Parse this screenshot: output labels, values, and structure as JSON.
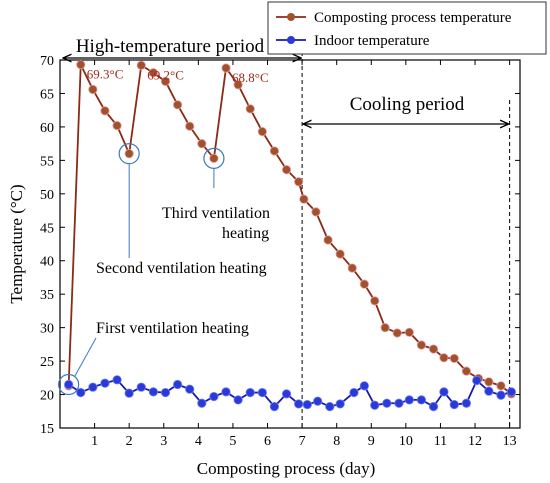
{
  "chart_data": {
    "type": "line",
    "xlabel": "Composting process (day)",
    "ylabel": "Temperature (°C)",
    "xlim": [
      0,
      13.3
    ],
    "ylim": [
      15,
      70
    ],
    "xticks": [
      1,
      2,
      3,
      4,
      5,
      6,
      7,
      8,
      9,
      10,
      11,
      12,
      13
    ],
    "yticks": [
      15,
      20,
      25,
      30,
      35,
      40,
      45,
      50,
      55,
      60,
      65,
      70
    ],
    "grid": false,
    "legend_position": "top-right",
    "series": [
      {
        "name": "Composting process temperature",
        "color": "#8b2a16",
        "marker_color": "#a0522d",
        "values": [
          [
            0.25,
            21.3
          ],
          [
            0.6,
            69.3
          ],
          [
            0.95,
            65.6
          ],
          [
            1.3,
            62.4
          ],
          [
            1.65,
            60.2
          ],
          [
            2.0,
            56.0
          ],
          [
            2.35,
            69.2
          ],
          [
            2.7,
            68.1
          ],
          [
            3.05,
            66.8
          ],
          [
            3.4,
            63.3
          ],
          [
            3.75,
            60.1
          ],
          [
            4.1,
            57.5
          ],
          [
            4.45,
            55.3
          ],
          [
            4.8,
            68.8
          ],
          [
            5.15,
            66.3
          ],
          [
            5.5,
            62.7
          ],
          [
            5.85,
            59.3
          ],
          [
            6.2,
            56.4
          ],
          [
            6.55,
            53.6
          ],
          [
            6.9,
            51.8
          ],
          [
            7.05,
            49.2
          ],
          [
            7.4,
            47.3
          ],
          [
            7.75,
            43.1
          ],
          [
            8.1,
            41.0
          ],
          [
            8.45,
            38.9
          ],
          [
            8.8,
            36.5
          ],
          [
            9.1,
            34.0
          ],
          [
            9.4,
            30.0
          ],
          [
            9.75,
            29.2
          ],
          [
            10.1,
            29.3
          ],
          [
            10.45,
            27.4
          ],
          [
            10.8,
            26.8
          ],
          [
            11.1,
            25.5
          ],
          [
            11.4,
            25.4
          ],
          [
            11.75,
            23.5
          ],
          [
            12.1,
            22.4
          ],
          [
            12.4,
            21.9
          ],
          [
            12.75,
            21.3
          ],
          [
            13.05,
            20.1
          ]
        ]
      },
      {
        "name": "Indoor temperature",
        "color": "#1a1aaa",
        "marker_color": "#2a3ad6",
        "values": [
          [
            0.25,
            21.5
          ],
          [
            0.6,
            20.3
          ],
          [
            0.95,
            21.1
          ],
          [
            1.3,
            21.7
          ],
          [
            1.65,
            22.2
          ],
          [
            2.0,
            20.2
          ],
          [
            2.35,
            21.1
          ],
          [
            2.7,
            20.4
          ],
          [
            3.05,
            20.3
          ],
          [
            3.4,
            21.5
          ],
          [
            3.75,
            20.8
          ],
          [
            4.1,
            18.7
          ],
          [
            4.45,
            19.7
          ],
          [
            4.8,
            20.4
          ],
          [
            5.15,
            19.2
          ],
          [
            5.5,
            20.3
          ],
          [
            5.85,
            20.3
          ],
          [
            6.2,
            18.2
          ],
          [
            6.55,
            20.1
          ],
          [
            6.9,
            18.6
          ],
          [
            7.15,
            18.5
          ],
          [
            7.45,
            19.0
          ],
          [
            7.8,
            18.2
          ],
          [
            8.1,
            18.6
          ],
          [
            8.5,
            20.3
          ],
          [
            8.8,
            21.3
          ],
          [
            9.1,
            18.4
          ],
          [
            9.45,
            18.7
          ],
          [
            9.8,
            18.7
          ],
          [
            10.1,
            19.2
          ],
          [
            10.45,
            19.2
          ],
          [
            10.8,
            18.2
          ],
          [
            11.1,
            20.4
          ],
          [
            11.4,
            18.5
          ],
          [
            11.75,
            18.7
          ],
          [
            12.05,
            22.1
          ],
          [
            12.4,
            20.5
          ],
          [
            12.75,
            19.9
          ],
          [
            13.05,
            20.4
          ]
        ]
      }
    ],
    "peak_labels": [
      {
        "text": "69.3°C",
        "x": 0.6,
        "y": 69.3
      },
      {
        "text": "69.2°C",
        "x": 2.35,
        "y": 69.2
      },
      {
        "text": "68.8°C",
        "x": 4.8,
        "y": 68.8
      }
    ],
    "ventilation_circles": [
      {
        "x": 0.25,
        "y": 21.5
      },
      {
        "x": 2.0,
        "y": 56.0
      },
      {
        "x": 4.45,
        "y": 55.3
      }
    ],
    "periods": {
      "high_temperature": {
        "label": "High-temperature period",
        "start": 0,
        "end": 7
      },
      "cooling": {
        "label": "Cooling period",
        "start": 7,
        "end": 13
      }
    },
    "annotations": {
      "first": "First ventilation heating",
      "second": "Second ventilation heating",
      "third_line1": "Third ventilation",
      "third_line2": "heating"
    }
  }
}
